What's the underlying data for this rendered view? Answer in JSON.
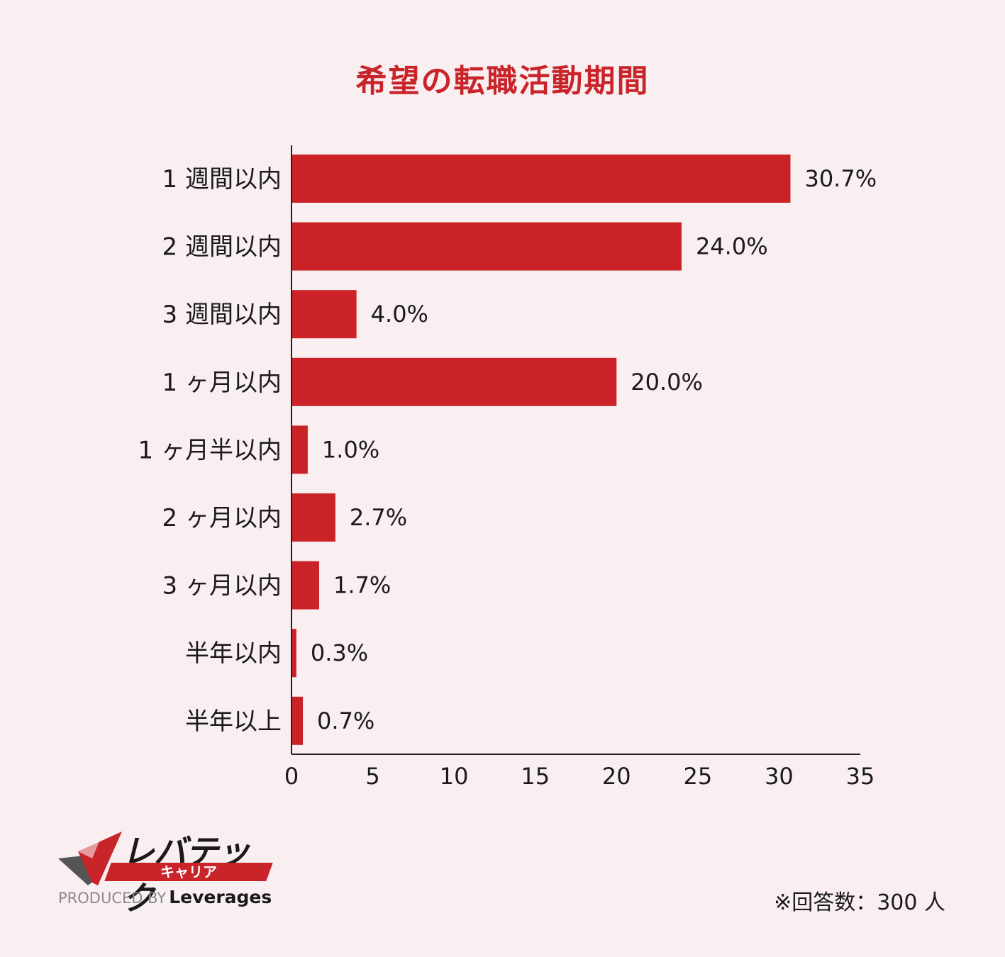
{
  "chart_data": {
    "type": "bar",
    "orientation": "horizontal",
    "title": "希望の転職活動期間",
    "categories": [
      "1 週間以内",
      "2 週間以内",
      "3 週間以内",
      "1 ヶ月以内",
      "1 ヶ月半以内",
      "2 ヶ月以内",
      "3 ヶ月以内",
      "半年以内",
      "半年以上"
    ],
    "values": [
      30.7,
      24.0,
      4.0,
      20.0,
      1.0,
      2.7,
      1.7,
      0.3,
      0.7
    ],
    "value_labels": [
      "30.7%",
      "24.0%",
      "4.0%",
      "20.0%",
      "1.0%",
      "2.7%",
      "1.7%",
      "0.3%",
      "0.7%"
    ],
    "xlim": [
      0,
      35
    ],
    "xticks": [
      0,
      5,
      10,
      15,
      20,
      25,
      30,
      35
    ],
    "xlabel": "",
    "ylabel": "",
    "grid": false,
    "bar_color": "#cb2228"
  },
  "logo": {
    "name": "レバテック",
    "sub": "キャリア",
    "produced_by": "PRODUCED BY",
    "company": "Leverages"
  },
  "footnote": "※回答数：300 人"
}
